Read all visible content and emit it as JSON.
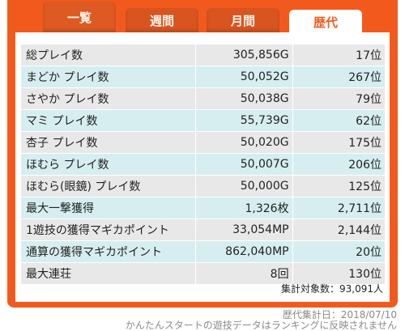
{
  "tabs": [
    {
      "label": "一覧"
    },
    {
      "label": "週間"
    },
    {
      "label": "月間"
    },
    {
      "label": "歴代"
    }
  ],
  "rows": [
    {
      "label": "総プレイ数",
      "value": "305,856G",
      "rank": "17位"
    },
    {
      "label": "まどか プレイ数",
      "value": "50,052G",
      "rank": "267位"
    },
    {
      "label": "さやか プレイ数",
      "value": "50,038G",
      "rank": "79位"
    },
    {
      "label": "マミ プレイ数",
      "value": "55,739G",
      "rank": "62位"
    },
    {
      "label": "杏子 プレイ数",
      "value": "50,020G",
      "rank": "175位"
    },
    {
      "label": "ほむら プレイ数",
      "value": "50,007G",
      "rank": "206位"
    },
    {
      "label": "ほむら(眼鏡) プレイ数",
      "value": "50,000G",
      "rank": "125位"
    },
    {
      "label": "最大一撃獲得",
      "value": "1,326枚",
      "rank": "2,711位"
    },
    {
      "label": "1遊技の獲得マギカポイント",
      "value": "33,054MP",
      "rank": "2,144位"
    },
    {
      "label": "通算の獲得マギカポイント",
      "value": "862,040MP",
      "rank": "20位"
    },
    {
      "label": "最大連荘",
      "value": "8回",
      "rank": "130位"
    }
  ],
  "summary": {
    "count_text": "集計対象数：93,091人"
  },
  "footer": {
    "date_text": "歴代集計日：2018/07/10",
    "note": "かんたんスタートの遊技データはランキングに反映されません"
  },
  "colors": {
    "accent": "#f25a1d",
    "row_odd": "#e8e8e8",
    "row_even": "#d6eef0"
  }
}
